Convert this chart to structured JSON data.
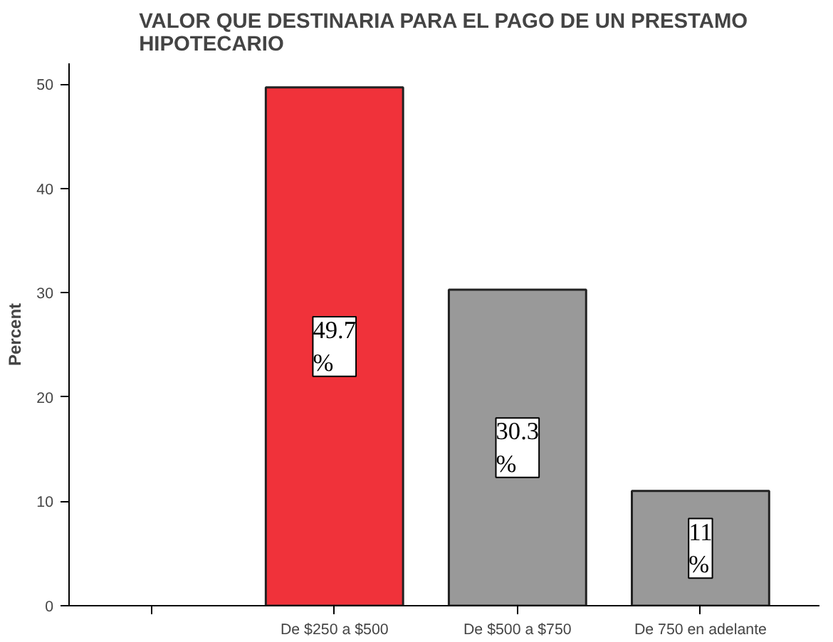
{
  "chart_data": {
    "type": "bar",
    "title": "VALOR QUE DESTINARIA PARA EL PAGO DE UN PRESTAMO\nHIPOTECARIO",
    "ylabel": "Percent",
    "categories": [
      null,
      "De $250 a $500",
      "De $500 a $750",
      "De 750 en adelante"
    ],
    "values": [
      null,
      49.7,
      30.3,
      11.0
    ],
    "colors": [
      "#999999",
      "#f0323a",
      "#999999",
      "#999999"
    ],
    "value_labels": [
      null,
      "49.7\n%",
      "30.3\n%",
      "11\n%"
    ],
    "ylim": [
      0,
      52
    ],
    "yticks": [
      0,
      10,
      20,
      30,
      40,
      50
    ],
    "grid": false
  }
}
